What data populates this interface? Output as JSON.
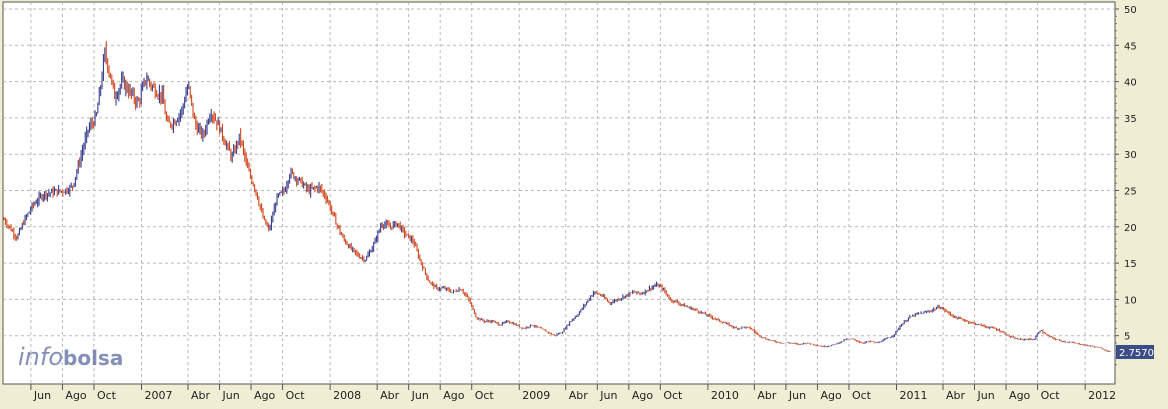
{
  "colors": {
    "background": "#efeed4",
    "plot_background": "#ffffff",
    "grid": "#b8b8b8",
    "up_candle": "#3a3f8f",
    "down_candle": "#d2461c",
    "last_price_box": "#3a4d86",
    "watermark": "#5a6aa0"
  },
  "watermark": {
    "part1": "info",
    "part2": "bolsa"
  },
  "last_price": "2.7570",
  "chart_data": {
    "type": "line",
    "title": "",
    "xlabel": "",
    "ylabel": "",
    "ylim": [
      0,
      51
    ],
    "y_ticks": [
      5,
      10,
      15,
      20,
      25,
      30,
      35,
      40,
      45,
      50
    ],
    "grid": true,
    "y_axis_side": "right",
    "x_ticks": [
      {
        "label": "Jun",
        "date": "2006-06"
      },
      {
        "label": "Ago",
        "date": "2006-08"
      },
      {
        "label": "Oct",
        "date": "2006-10"
      },
      {
        "label": "2007",
        "date": "2007-01"
      },
      {
        "label": "Abr",
        "date": "2007-04"
      },
      {
        "label": "Jun",
        "date": "2007-06"
      },
      {
        "label": "Ago",
        "date": "2007-08"
      },
      {
        "label": "Oct",
        "date": "2007-10"
      },
      {
        "label": "2008",
        "date": "2008-01"
      },
      {
        "label": "Abr",
        "date": "2008-04"
      },
      {
        "label": "Jun",
        "date": "2008-06"
      },
      {
        "label": "Ago",
        "date": "2008-08"
      },
      {
        "label": "Oct",
        "date": "2008-10"
      },
      {
        "label": "2009",
        "date": "2009-01"
      },
      {
        "label": "Abr",
        "date": "2009-04"
      },
      {
        "label": "Jun",
        "date": "2009-06"
      },
      {
        "label": "Ago",
        "date": "2009-08"
      },
      {
        "label": "Oct",
        "date": "2009-10"
      },
      {
        "label": "2010",
        "date": "2010-01"
      },
      {
        "label": "Abr",
        "date": "2010-04"
      },
      {
        "label": "Jun",
        "date": "2010-06"
      },
      {
        "label": "Ago",
        "date": "2010-08"
      },
      {
        "label": "Oct",
        "date": "2010-10"
      },
      {
        "label": "2011",
        "date": "2011-01"
      },
      {
        "label": "Abr",
        "date": "2011-04"
      },
      {
        "label": "Jun",
        "date": "2011-06"
      },
      {
        "label": "Ago",
        "date": "2011-08"
      },
      {
        "label": "Oct",
        "date": "2011-10"
      },
      {
        "label": "2012",
        "date": "2012-01"
      }
    ],
    "series": [
      {
        "points": [
          [
            "2006-04-10",
            21.0
          ],
          [
            "2006-04-25",
            19.5
          ],
          [
            "2006-05-05",
            18.5
          ],
          [
            "2006-05-20",
            21.0
          ],
          [
            "2006-06-05",
            23.0
          ],
          [
            "2006-06-25",
            24.5
          ],
          [
            "2006-07-15",
            24.8
          ],
          [
            "2006-08-05",
            25.0
          ],
          [
            "2006-08-20",
            25.5
          ],
          [
            "2006-09-01",
            28.5
          ],
          [
            "2006-09-20",
            33.5
          ],
          [
            "2006-10-05",
            35.0
          ],
          [
            "2006-10-15",
            40.0
          ],
          [
            "2006-10-22",
            44.0
          ],
          [
            "2006-11-01",
            41.0
          ],
          [
            "2006-11-10",
            38.0
          ],
          [
            "2006-11-25",
            40.0
          ],
          [
            "2006-12-10",
            38.5
          ],
          [
            "2006-12-25",
            37.0
          ],
          [
            "2007-01-10",
            40.5
          ],
          [
            "2007-01-25",
            39.0
          ],
          [
            "2007-02-10",
            38.0
          ],
          [
            "2007-02-20",
            34.0
          ],
          [
            "2007-03-05",
            34.5
          ],
          [
            "2007-03-20",
            36.0
          ],
          [
            "2007-04-01",
            39.5
          ],
          [
            "2007-04-15",
            34.0
          ],
          [
            "2007-04-30",
            32.5
          ],
          [
            "2007-05-15",
            36.0
          ],
          [
            "2007-05-30",
            34.0
          ],
          [
            "2007-06-10",
            32.0
          ],
          [
            "2007-06-25",
            29.5
          ],
          [
            "2007-07-10",
            32.5
          ],
          [
            "2007-07-25",
            28.0
          ],
          [
            "2007-08-10",
            25.0
          ],
          [
            "2007-08-25",
            21.0
          ],
          [
            "2007-09-05",
            19.5
          ],
          [
            "2007-09-20",
            24.0
          ],
          [
            "2007-10-05",
            25.0
          ],
          [
            "2007-10-15",
            27.5
          ],
          [
            "2007-11-01",
            26.5
          ],
          [
            "2007-11-20",
            25.0
          ],
          [
            "2007-12-10",
            25.5
          ],
          [
            "2007-12-25",
            24.0
          ],
          [
            "2008-01-10",
            21.0
          ],
          [
            "2008-01-25",
            18.5
          ],
          [
            "2008-02-10",
            17.0
          ],
          [
            "2008-02-25",
            16.0
          ],
          [
            "2008-03-10",
            15.5
          ],
          [
            "2008-03-25",
            17.5
          ],
          [
            "2008-04-10",
            20.5
          ],
          [
            "2008-04-25",
            20.0
          ],
          [
            "2008-05-10",
            20.5
          ],
          [
            "2008-05-25",
            19.0
          ],
          [
            "2008-06-10",
            18.0
          ],
          [
            "2008-06-25",
            15.0
          ],
          [
            "2008-07-10",
            12.5
          ],
          [
            "2008-07-25",
            11.5
          ],
          [
            "2008-08-10",
            11.5
          ],
          [
            "2008-08-25",
            11.0
          ],
          [
            "2008-09-10",
            11.5
          ],
          [
            "2008-09-25",
            10.0
          ],
          [
            "2008-10-10",
            7.5
          ],
          [
            "2008-10-25",
            7.0
          ],
          [
            "2008-11-10",
            7.0
          ],
          [
            "2008-11-25",
            6.5
          ],
          [
            "2008-12-10",
            7.0
          ],
          [
            "2008-12-25",
            6.5
          ],
          [
            "2009-01-10",
            6.0
          ],
          [
            "2009-01-25",
            6.5
          ],
          [
            "2009-02-10",
            6.0
          ],
          [
            "2009-02-25",
            5.5
          ],
          [
            "2009-03-10",
            5.0
          ],
          [
            "2009-03-25",
            5.5
          ],
          [
            "2009-04-10",
            7.0
          ],
          [
            "2009-04-25",
            8.0
          ],
          [
            "2009-05-10",
            9.5
          ],
          [
            "2009-05-25",
            11.0
          ],
          [
            "2009-06-10",
            10.5
          ],
          [
            "2009-06-25",
            9.5
          ],
          [
            "2009-07-10",
            10.0
          ],
          [
            "2009-07-25",
            10.5
          ],
          [
            "2009-08-10",
            11.0
          ],
          [
            "2009-08-25",
            10.8
          ],
          [
            "2009-09-10",
            11.5
          ],
          [
            "2009-09-25",
            12.0
          ],
          [
            "2009-10-05",
            11.5
          ],
          [
            "2009-10-20",
            10.0
          ],
          [
            "2009-11-05",
            9.5
          ],
          [
            "2009-11-20",
            9.0
          ],
          [
            "2009-12-10",
            8.5
          ],
          [
            "2009-12-25",
            8.0
          ],
          [
            "2010-01-10",
            7.5
          ],
          [
            "2010-01-25",
            7.0
          ],
          [
            "2010-02-10",
            6.5
          ],
          [
            "2010-02-25",
            6.0
          ],
          [
            "2010-03-10",
            6.2
          ],
          [
            "2010-03-25",
            6.0
          ],
          [
            "2010-04-10",
            5.0
          ],
          [
            "2010-04-25",
            4.5
          ],
          [
            "2010-05-10",
            4.2
          ],
          [
            "2010-05-25",
            4.0
          ],
          [
            "2010-06-10",
            4.0
          ],
          [
            "2010-06-25",
            3.8
          ],
          [
            "2010-07-10",
            4.0
          ],
          [
            "2010-07-25",
            3.8
          ],
          [
            "2010-08-10",
            3.5
          ],
          [
            "2010-08-25",
            3.6
          ],
          [
            "2010-09-10",
            4.0
          ],
          [
            "2010-09-25",
            4.5
          ],
          [
            "2010-10-10",
            4.5
          ],
          [
            "2010-10-25",
            4.0
          ],
          [
            "2010-11-10",
            4.2
          ],
          [
            "2010-11-25",
            4.0
          ],
          [
            "2010-12-10",
            4.5
          ],
          [
            "2010-12-25",
            5.0
          ],
          [
            "2011-01-10",
            6.5
          ],
          [
            "2011-01-25",
            7.5
          ],
          [
            "2011-02-10",
            8.0
          ],
          [
            "2011-02-25",
            8.2
          ],
          [
            "2011-03-10",
            8.5
          ],
          [
            "2011-03-25",
            9.0
          ],
          [
            "2011-04-10",
            8.2
          ],
          [
            "2011-04-25",
            7.5
          ],
          [
            "2011-05-10",
            7.2
          ],
          [
            "2011-05-25",
            6.8
          ],
          [
            "2011-06-10",
            6.5
          ],
          [
            "2011-06-25",
            6.2
          ],
          [
            "2011-07-10",
            6.0
          ],
          [
            "2011-07-25",
            5.5
          ],
          [
            "2011-08-10",
            4.8
          ],
          [
            "2011-08-25",
            4.5
          ],
          [
            "2011-09-10",
            4.5
          ],
          [
            "2011-09-25",
            4.5
          ],
          [
            "2011-10-05",
            5.8
          ],
          [
            "2011-10-20",
            5.0
          ],
          [
            "2011-11-05",
            4.5
          ],
          [
            "2011-11-20",
            4.2
          ],
          [
            "2011-12-10",
            4.0
          ],
          [
            "2011-12-25",
            3.8
          ],
          [
            "2012-01-10",
            3.6
          ],
          [
            "2012-01-25",
            3.4
          ],
          [
            "2012-02-10",
            3.0
          ],
          [
            "2012-02-20",
            2.757
          ]
        ]
      }
    ]
  }
}
